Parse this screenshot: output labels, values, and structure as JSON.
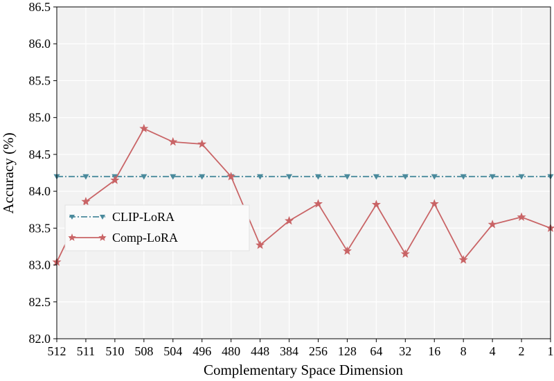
{
  "chart_data": {
    "type": "line",
    "title": "",
    "xlabel": "Complementary Space Dimension",
    "ylabel": "Accuracy (%)",
    "categories": [
      "512",
      "511",
      "510",
      "508",
      "504",
      "496",
      "480",
      "448",
      "384",
      "256",
      "128",
      "64",
      "32",
      "16",
      "8",
      "4",
      "2",
      "1"
    ],
    "yticks": [
      "82.0",
      "82.5",
      "83.0",
      "83.5",
      "84.0",
      "84.5",
      "85.0",
      "85.5",
      "86.0",
      "86.5"
    ],
    "ylim": [
      82.0,
      86.5
    ],
    "grid": true,
    "legend_position": "center-left",
    "series": [
      {
        "name": "CLIP-LoRA",
        "color": "#4a8a9c",
        "marker": "triangle-down",
        "linestyle": "dash-dot",
        "values": [
          84.2,
          84.2,
          84.2,
          84.2,
          84.2,
          84.2,
          84.2,
          84.2,
          84.2,
          84.2,
          84.2,
          84.2,
          84.2,
          84.2,
          84.2,
          84.2,
          84.2,
          84.2
        ]
      },
      {
        "name": "Comp-LoRA",
        "color": "#c96466",
        "marker": "star",
        "linestyle": "solid",
        "values": [
          83.04,
          83.86,
          84.15,
          84.85,
          84.67,
          84.64,
          84.2,
          83.27,
          83.6,
          83.83,
          83.19,
          83.82,
          83.15,
          83.83,
          83.07,
          83.55,
          83.65,
          83.5
        ]
      }
    ]
  }
}
